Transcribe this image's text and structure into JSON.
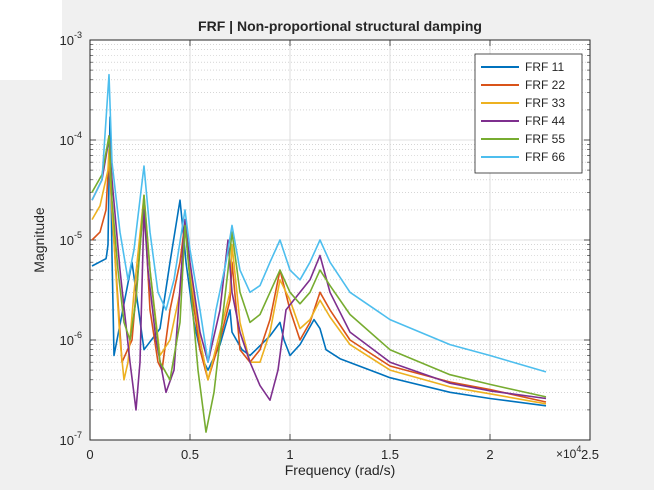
{
  "chart_data": {
    "type": "line",
    "title": "FRF | Non-proportional structural damping",
    "xlabel": "Frequency (rad/s)",
    "ylabel": "Magnitude",
    "x_scale_multiplier": "×10",
    "x_scale_exponent": "4",
    "xlim": [
      0,
      25000
    ],
    "ylim": [
      1e-07,
      0.001
    ],
    "y_scale": "log",
    "grid": "on (major and minor)",
    "legend_position": "top-right",
    "x_tick_values": [
      0,
      5000,
      10000,
      15000,
      20000,
      25000
    ],
    "x_tick_labels": [
      "0",
      "0.5",
      "1",
      "1.5",
      "2",
      "2.5"
    ],
    "y_tick_values": [
      1e-07,
      1e-06,
      1e-05,
      0.0001,
      0.001
    ],
    "y_tick_labels": [
      {
        "base": "10",
        "exp": "-7"
      },
      {
        "base": "10",
        "exp": "-6"
      },
      {
        "base": "10",
        "exp": "-5"
      },
      {
        "base": "10",
        "exp": "-4"
      },
      {
        "base": "10",
        "exp": "-3"
      }
    ],
    "series": [
      {
        "name": "FRF 11",
        "color": "#0072BD",
        "x": [
          100,
          800,
          830,
          900,
          1000,
          1100,
          1200,
          2100,
          2700,
          3500,
          4000,
          4500,
          4700,
          4800,
          5200,
          5500,
          5700,
          5900,
          6500,
          7000,
          7100,
          7600,
          8000,
          9000,
          9500,
          9700,
          10000,
          10500,
          11200,
          11500,
          11800,
          12500,
          15000,
          18000,
          20000,
          22800
        ],
        "y": [
          5.5e-06,
          6.5e-06,
          7e-06,
          9e-06,
          0.00017,
          7e-06,
          7e-07,
          6e-06,
          8e-07,
          1.3e-06,
          6e-06,
          2.5e-05,
          1e-05,
          6e-06,
          1.5e-06,
          8e-07,
          6e-07,
          5e-07,
          9e-07,
          2e-06,
          1.2e-06,
          8e-07,
          7e-07,
          1.1e-06,
          1.5e-06,
          1e-06,
          7e-07,
          9e-07,
          1.6e-06,
          1.3e-06,
          8e-07,
          6.5e-07,
          4.2e-07,
          3e-07,
          2.6e-07,
          2.2e-07
        ]
      },
      {
        "name": "FRF 22",
        "color": "#D95319",
        "x": [
          100,
          500,
          800,
          950,
          1100,
          1600,
          2100,
          2700,
          3000,
          3400,
          3600,
          4000,
          4500,
          4750,
          5000,
          5500,
          5900,
          6500,
          7000,
          7100,
          7500,
          8000,
          8500,
          9000,
          9500,
          10000,
          10500,
          11000,
          11500,
          12000,
          13000,
          15000,
          18000,
          20000,
          22800
        ],
        "y": [
          1e-05,
          1.2e-05,
          2e-05,
          7e-05,
          2e-05,
          6e-07,
          1e-06,
          2.5e-05,
          2e-06,
          6e-07,
          5e-07,
          2e-06,
          6e-06,
          1.5e-05,
          4e-06,
          8e-07,
          4e-07,
          1e-06,
          2.5e-06,
          6e-06,
          8e-07,
          6e-07,
          8e-07,
          1.6e-06,
          5e-06,
          2e-06,
          1e-06,
          1.5e-06,
          3e-06,
          2e-06,
          1e-06,
          5.5e-07,
          3.8e-07,
          3.2e-07,
          2.4e-07
        ]
      },
      {
        "name": "FRF 33",
        "color": "#EDB120",
        "x": [
          100,
          500,
          900,
          950,
          1100,
          1500,
          1700,
          1900,
          2200,
          2700,
          3000,
          3500,
          4000,
          4500,
          4750,
          5000,
          5500,
          5900,
          6500,
          7000,
          7100,
          7500,
          8000,
          8500,
          9000,
          9500,
          10000,
          10500,
          11000,
          11500,
          12000,
          13000,
          15000,
          18000,
          20000,
          22800
        ],
        "y": [
          1.6e-05,
          2.2e-05,
          5e-05,
          8e-05,
          2e-05,
          1e-06,
          4e-07,
          6e-07,
          3e-06,
          2.8e-05,
          5e-06,
          7e-07,
          1e-06,
          3e-06,
          1.3e-05,
          5e-06,
          1e-06,
          4e-07,
          1.2e-06,
          3e-06,
          9e-06,
          1.5e-06,
          6e-07,
          6e-07,
          1.2e-06,
          4e-06,
          2.5e-06,
          1.3e-06,
          1.6e-06,
          2.5e-06,
          1.7e-06,
          9e-07,
          5e-07,
          3.4e-07,
          2.9e-07,
          2.3e-07
        ]
      },
      {
        "name": "FRF 44",
        "color": "#7E2F8E",
        "x": [
          100,
          600,
          900,
          950,
          1100,
          1500,
          2000,
          2300,
          2500,
          2700,
          2900,
          3300,
          3800,
          4200,
          4750,
          5000,
          5500,
          5900,
          6500,
          6900,
          7100,
          7500,
          8000,
          8500,
          9000,
          9400,
          9800,
          10500,
          11000,
          11500,
          12000,
          13000,
          15000,
          18000,
          20000,
          22800
        ],
        "y": [
          2.5e-05,
          4e-05,
          9e-05,
          0.00011,
          4e-05,
          5e-06,
          6e-07,
          2e-07,
          6e-07,
          2e-05,
          5e-06,
          1e-06,
          3e-07,
          5e-07,
          1.6e-05,
          6e-06,
          1.2e-06,
          6e-07,
          2e-06,
          1e-05,
          3e-06,
          1.2e-06,
          6e-07,
          3.5e-07,
          2.5e-07,
          5e-07,
          2e-06,
          3e-06,
          4e-06,
          7e-06,
          3e-06,
          1.2e-06,
          6e-07,
          3.7e-07,
          3.1e-07,
          2.6e-07
        ]
      },
      {
        "name": "FRF 55",
        "color": "#77AC30",
        "x": [
          100,
          600,
          950,
          1100,
          1400,
          1700,
          2000,
          2300,
          2700,
          3000,
          3500,
          4000,
          4500,
          4750,
          5000,
          5400,
          5800,
          6200,
          6600,
          6900,
          7100,
          7500,
          8000,
          8500,
          9000,
          9500,
          10000,
          10500,
          11000,
          11500,
          12000,
          13000,
          15000,
          18000,
          20000,
          22800
        ],
        "y": [
          3e-05,
          4.5e-05,
          0.00011,
          2.5e-05,
          5e-06,
          1.5e-06,
          1e-06,
          2.5e-06,
          2.8e-05,
          5e-06,
          6e-07,
          4e-07,
          1.5e-06,
          1.4e-05,
          4e-06,
          5e-07,
          1.2e-07,
          3e-07,
          1.5e-06,
          5e-06,
          1.2e-05,
          3e-06,
          1.5e-06,
          1.8e-06,
          3e-06,
          5e-06,
          3e-06,
          2.3e-06,
          3e-06,
          5e-06,
          3.5e-06,
          1.8e-06,
          8e-07,
          4.5e-07,
          3.6e-07,
          2.7e-07
        ]
      },
      {
        "name": "FRF 66",
        "color": "#4DBEEE",
        "x": [
          100,
          600,
          950,
          1100,
          1500,
          1900,
          2200,
          2700,
          3000,
          3400,
          3800,
          4200,
          4750,
          5000,
          5500,
          5900,
          6300,
          6800,
          7100,
          7500,
          8000,
          8500,
          9000,
          9500,
          10000,
          10500,
          11000,
          11500,
          12000,
          13000,
          15000,
          18000,
          20000,
          22800
        ],
        "y": [
          2.5e-05,
          4e-05,
          0.00045,
          6e-05,
          1.2e-05,
          4e-06,
          8e-06,
          5.5e-05,
          1.2e-05,
          3e-06,
          2e-06,
          4e-06,
          2e-05,
          8e-06,
          2e-06,
          6e-07,
          2e-06,
          6e-06,
          1.4e-05,
          5e-06,
          3e-06,
          3.5e-06,
          6e-06,
          1e-05,
          5e-06,
          4e-06,
          6e-06,
          1e-05,
          6e-06,
          3e-06,
          1.6e-06,
          9e-07,
          7e-07,
          4.8e-07
        ]
      }
    ]
  }
}
